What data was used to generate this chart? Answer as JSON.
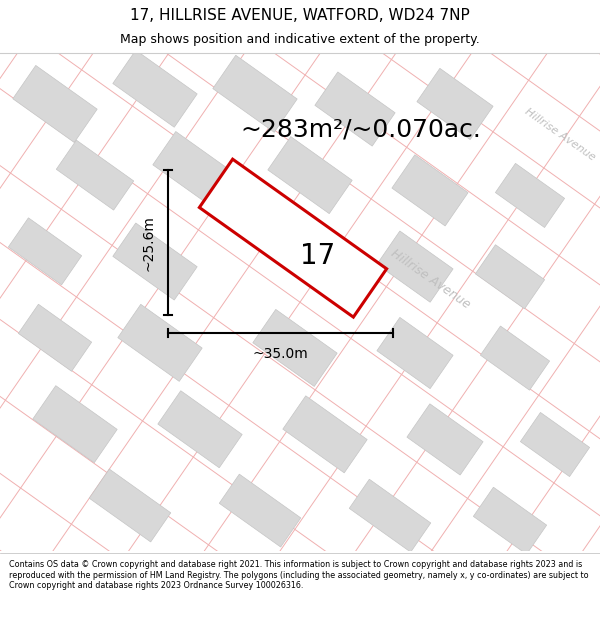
{
  "title_line1": "17, HILLRISE AVENUE, WATFORD, WD24 7NP",
  "title_line2": "Map shows position and indicative extent of the property.",
  "footer_text": "Contains OS data © Crown copyright and database right 2021. This information is subject to Crown copyright and database rights 2023 and is reproduced with the permission of HM Land Registry. The polygons (including the associated geometry, namely x, y co-ordinates) are subject to Crown copyright and database rights 2023 Ordnance Survey 100026316.",
  "area_label": "~283m²/~0.070ac.",
  "plot_number": "17",
  "dim_width": "~35.0m",
  "dim_height": "~25.6m",
  "street_label_main": "Hillrise Avenue",
  "street_label_top": "Hillrise Avenue",
  "map_bg": "#f7f7f7",
  "plot_fill": "#ffffff",
  "plot_edge": "#cc0000",
  "street_line_color": "#f0b0b0",
  "block_color": "#d8d8d8",
  "block_outline": "#c5c5c5",
  "title_fontsize": 11,
  "subtitle_fontsize": 9,
  "footer_fontsize": 5.8,
  "area_fontsize": 18,
  "dim_fontsize": 10,
  "street_fontsize": 9,
  "number_fontsize": 20
}
